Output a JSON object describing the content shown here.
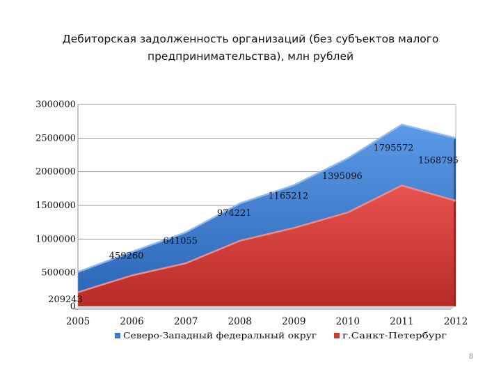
{
  "slide": {
    "title": "Дебиторская задолженность организаций (без субъектов малого предпринимательства), млн рублей",
    "page_number": "8"
  },
  "chart_data": {
    "type": "area",
    "title": "Дебиторская задолженность организаций (без субъектов малого предпринимательства), млн рублей",
    "categories": [
      "2005",
      "2006",
      "2007",
      "2008",
      "2009",
      "2010",
      "2011",
      "2012"
    ],
    "ylim": [
      0,
      3000000
    ],
    "yticks": [
      "0",
      "500000",
      "1000000",
      "1500000",
      "2000000",
      "2500000",
      "3000000"
    ],
    "grid": true,
    "legend_position": "bottom",
    "series": [
      {
        "name": "Северо-Западный федеральный округ",
        "color": "#3a78c8",
        "values": [
          510000,
          810000,
          1100000,
          1530000,
          1800000,
          2200000,
          2700000,
          2500000
        ]
      },
      {
        "name": "г.Санкт-Петербург",
        "color": "#d23a36",
        "values": [
          209243,
          459260,
          641055,
          974221,
          1165212,
          1395096,
          1795572,
          1568795
        ],
        "data_labels": [
          "209243",
          "459260",
          "641055",
          "974221",
          "1165212",
          "1395096",
          "1795572",
          "1568795"
        ]
      }
    ]
  }
}
